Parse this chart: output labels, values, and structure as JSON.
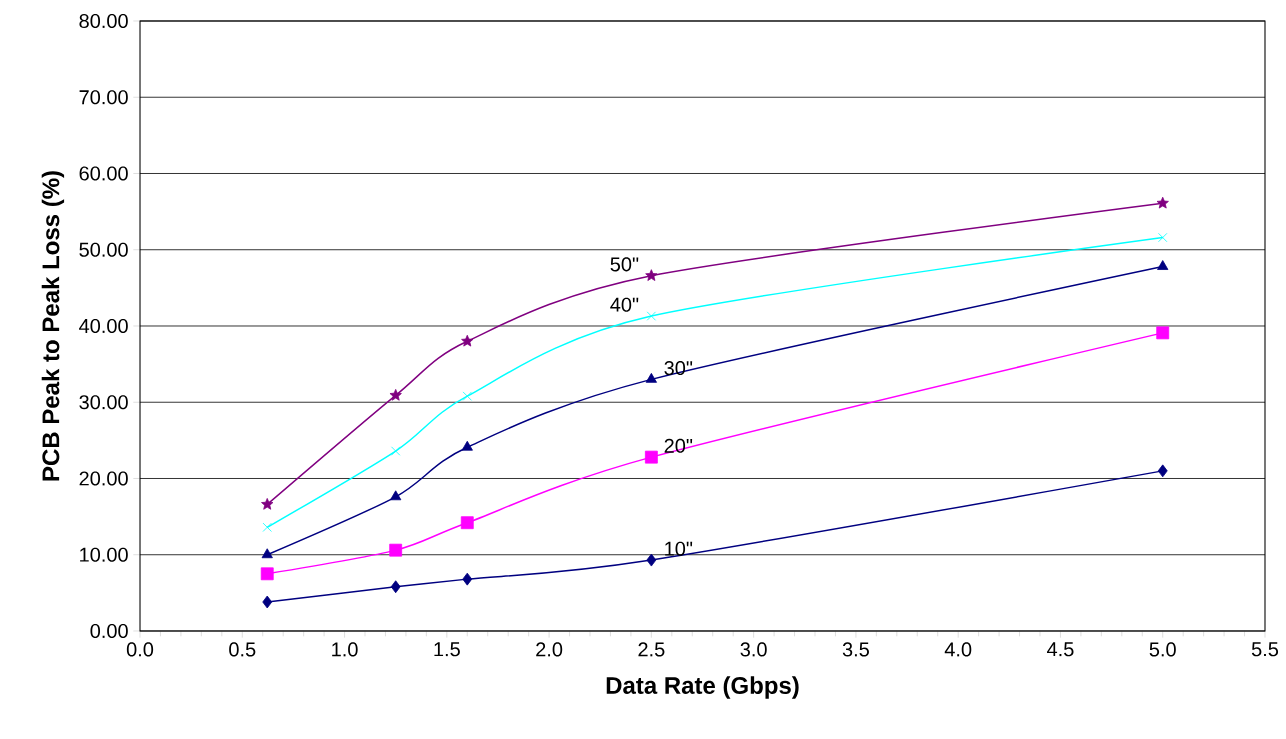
{
  "chart_data": {
    "type": "line",
    "xlabel": "Data Rate (Gbps)",
    "ylabel": "PCB Peak to Peak Loss (%)",
    "x": [
      0.622,
      1.25,
      1.6,
      2.5,
      5.0
    ],
    "series": [
      {
        "name": "10\"",
        "color": "#000080",
        "marker": "diamond",
        "values": [
          3.8,
          5.8,
          6.8,
          9.3,
          21.0
        ]
      },
      {
        "name": "20\"",
        "color": "#ff00ff",
        "marker": "square",
        "values": [
          7.5,
          10.6,
          14.2,
          22.8,
          39.1
        ]
      },
      {
        "name": "30\"",
        "color": "#000080",
        "marker": "triangle",
        "values": [
          10.0,
          17.6,
          24.1,
          33.0,
          47.8
        ]
      },
      {
        "name": "40\"",
        "color": "#00ffff",
        "marker": "cross",
        "values": [
          13.6,
          23.6,
          30.8,
          41.3,
          51.6
        ]
      },
      {
        "name": "50\"",
        "color": "#800080",
        "marker": "star",
        "values": [
          16.6,
          30.9,
          38.0,
          46.6,
          56.1
        ]
      }
    ],
    "xlim": [
      0,
      5.5
    ],
    "ylim": [
      0,
      80
    ],
    "xticks": [
      {
        "value": 0,
        "label": "0.0"
      },
      {
        "value": 0.5,
        "label": "0.5"
      },
      {
        "value": 1,
        "label": "1.0"
      },
      {
        "value": 1.5,
        "label": "1.5"
      },
      {
        "value": 2,
        "label": "2.0"
      },
      {
        "value": 2.5,
        "label": "2.5"
      },
      {
        "value": 3,
        "label": "3.0"
      },
      {
        "value": 3.5,
        "label": "3.5"
      },
      {
        "value": 4,
        "label": "4.0"
      },
      {
        "value": 4.5,
        "label": "4.5"
      },
      {
        "value": 5,
        "label": "5.0"
      },
      {
        "value": 5.5,
        "label": "5.5"
      }
    ],
    "yticks": [
      {
        "value": 0,
        "label": "0.00"
      },
      {
        "value": 10,
        "label": "10.00"
      },
      {
        "value": 20,
        "label": "20.00"
      },
      {
        "value": 30,
        "label": "30.00"
      },
      {
        "value": 40,
        "label": "40.00"
      },
      {
        "value": 50,
        "label": "50.00"
      },
      {
        "value": 60,
        "label": "60.00"
      },
      {
        "value": 70,
        "label": "70.00"
      },
      {
        "value": 80,
        "label": "80.00"
      }
    ],
    "grid": "y",
    "legend": false
  }
}
